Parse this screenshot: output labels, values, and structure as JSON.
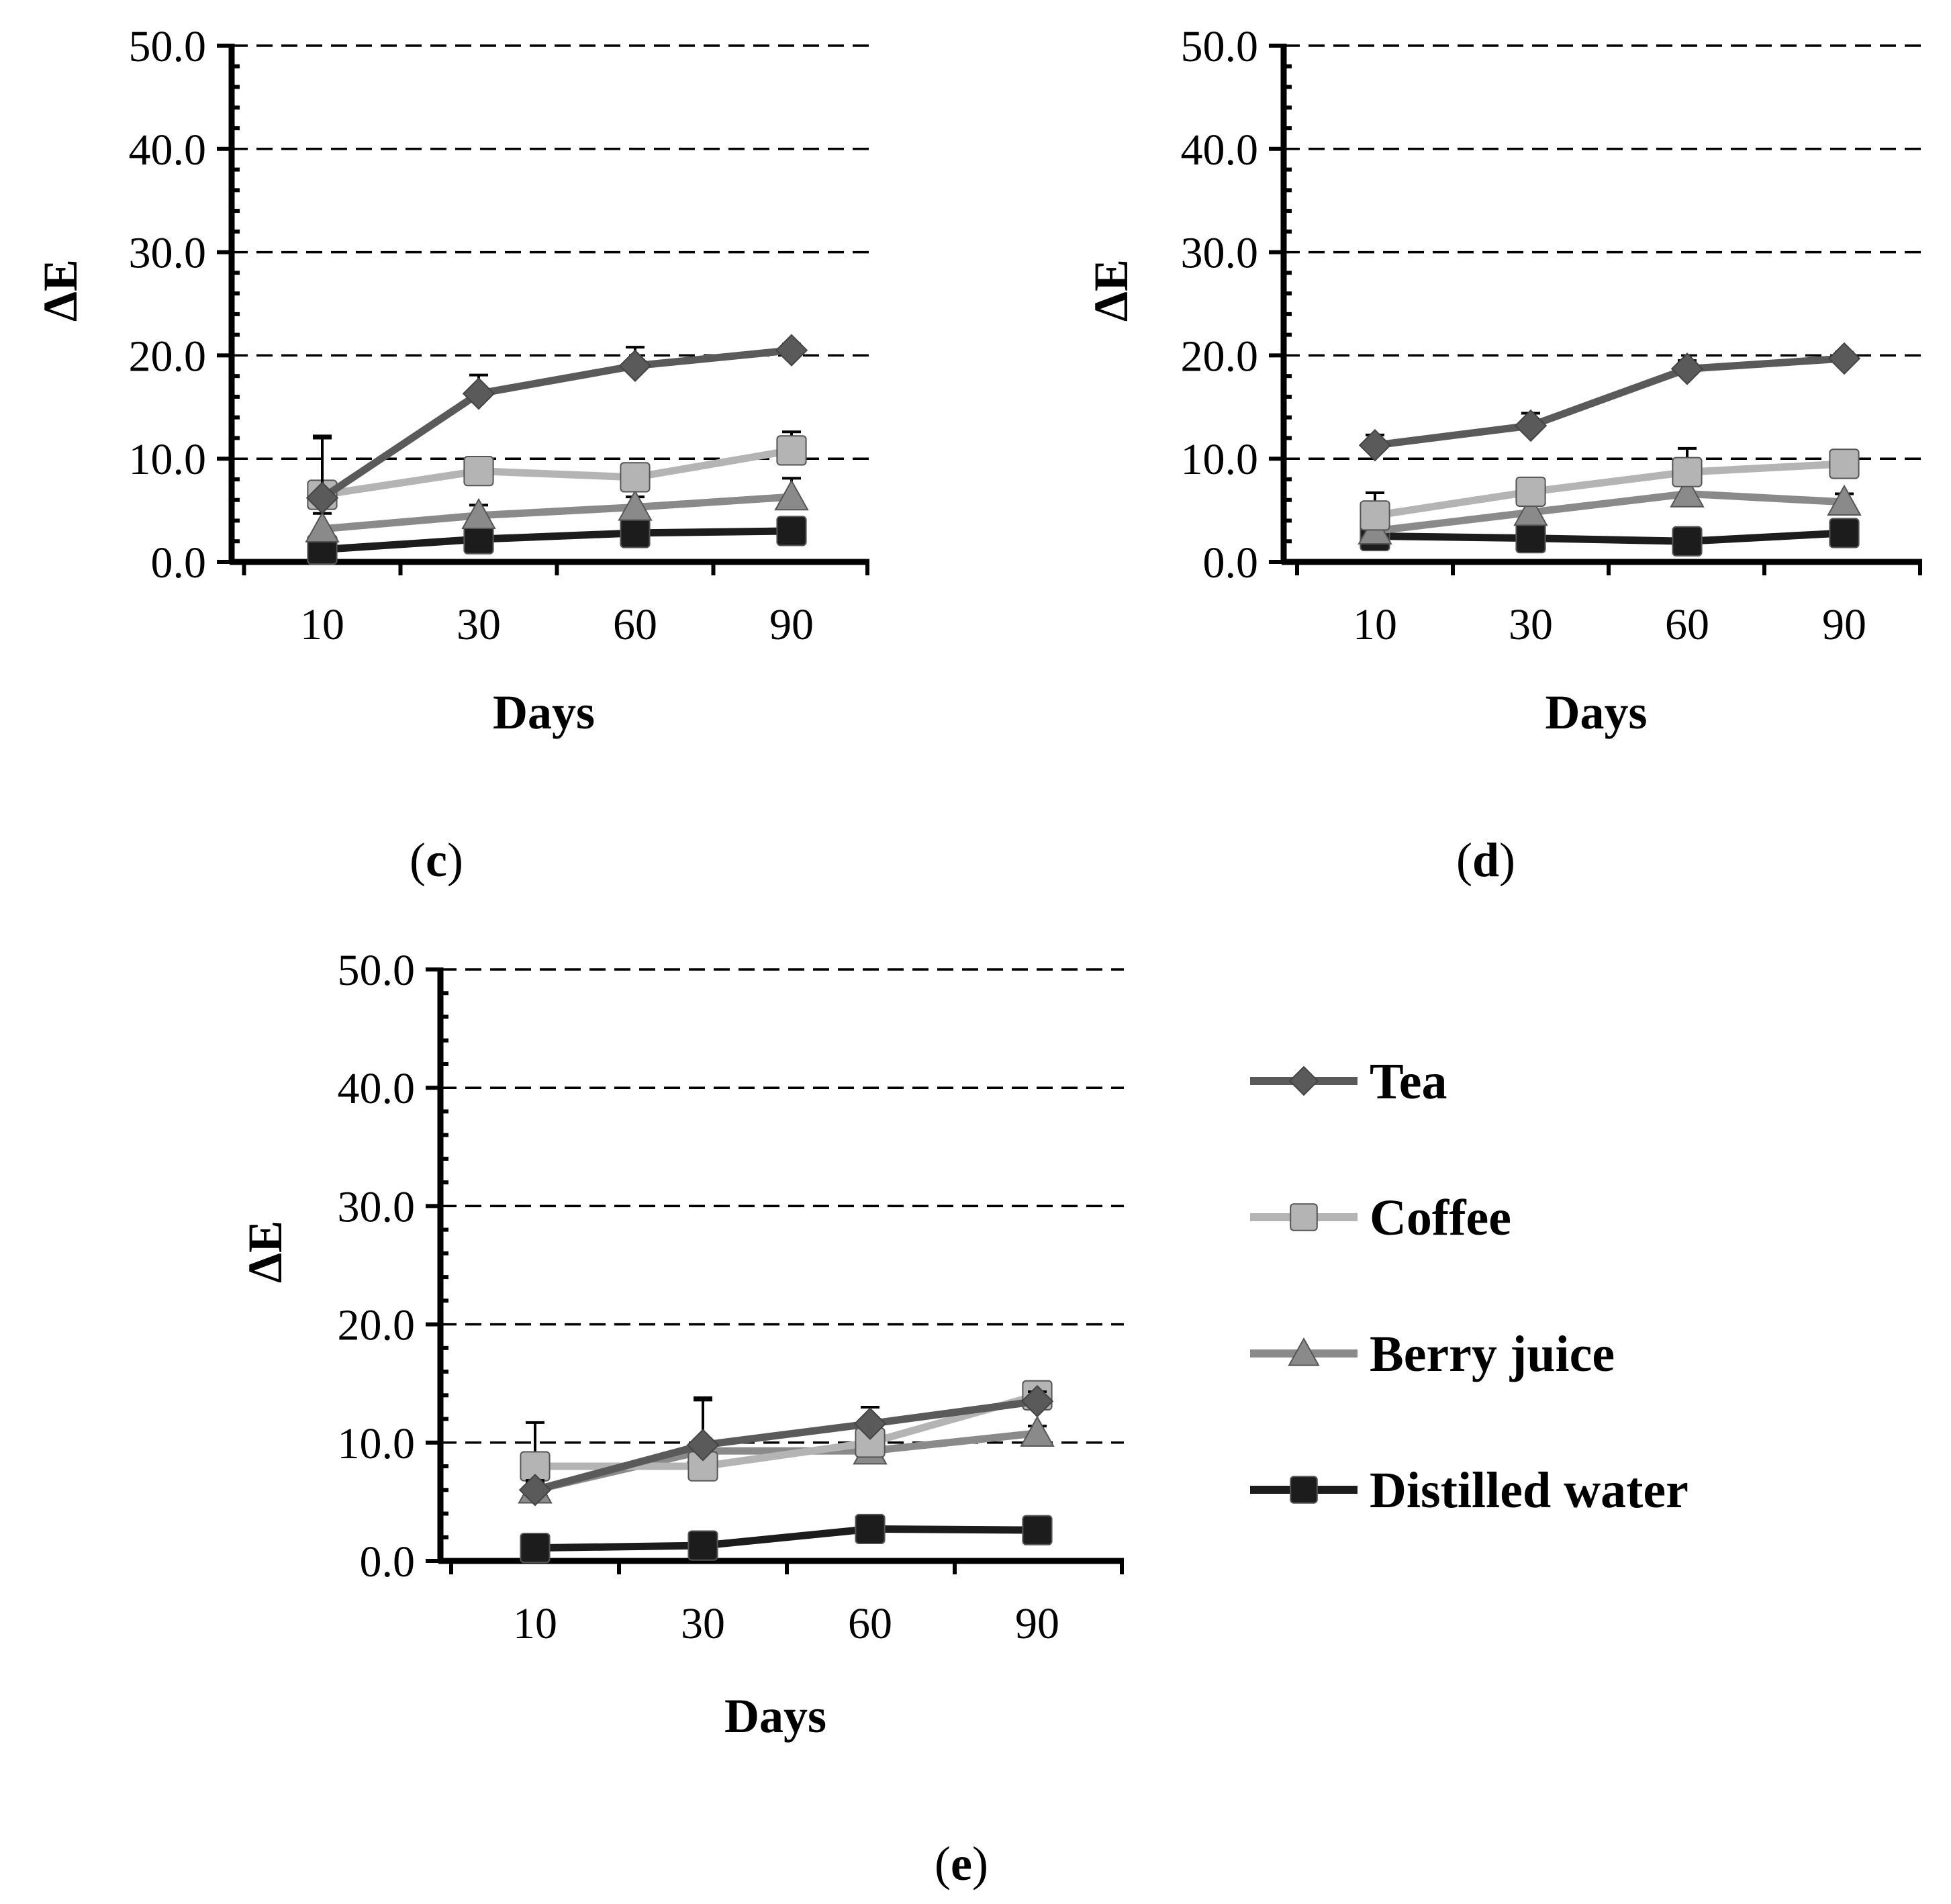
{
  "legend": [
    {
      "name": "Tea",
      "color": "#5a5a5a",
      "marker": "diamond-icon"
    },
    {
      "name": "Coffee",
      "color": "#b4b4b4",
      "marker": "square-icon"
    },
    {
      "name": "Berry juice",
      "color": "#8a8a8a",
      "marker": "triangle-icon"
    },
    {
      "name": "Distilled water",
      "color": "#1c1c1c",
      "marker": "square-icon"
    }
  ],
  "chart_data": [
    {
      "type": "line",
      "panel": "c",
      "caption_open": "(",
      "caption_letter": "c",
      "caption_close": ")",
      "xlabel": "Days",
      "ylabel": "ΔE",
      "categories": [
        "10",
        "30",
        "60",
        "90"
      ],
      "ylim": [
        0,
        50
      ],
      "yticks": [
        "0.0",
        "10.0",
        "20.0",
        "30.0",
        "40.0",
        "50.0"
      ],
      "series": [
        {
          "name": "Tea",
          "values": [
            6.2,
            16.3,
            19.0,
            20.5
          ],
          "errors": [
            6.0,
            1.8,
            1.8,
            0.6
          ]
        },
        {
          "name": "Coffee",
          "values": [
            6.5,
            8.8,
            8.2,
            10.8
          ],
          "errors": [
            5.5,
            1.0,
            1.2,
            1.8
          ]
        },
        {
          "name": "Berry juice",
          "values": [
            3.2,
            4.5,
            5.3,
            6.3
          ],
          "errors": [
            1.5,
            1.0,
            1.0,
            1.8
          ]
        },
        {
          "name": "Distilled water",
          "values": [
            1.2,
            2.2,
            2.8,
            3.0
          ],
          "errors": [
            0.5,
            0.5,
            0.5,
            0.5
          ]
        }
      ]
    },
    {
      "type": "line",
      "panel": "d",
      "caption_open": "(",
      "caption_letter": "d",
      "caption_close": ")",
      "xlabel": "Days",
      "ylabel": "ΔE",
      "categories": [
        "10",
        "30",
        "60",
        "90"
      ],
      "ylim": [
        0,
        50
      ],
      "yticks": [
        "0.0",
        "10.0",
        "20.0",
        "30.0",
        "40.0",
        "50.0"
      ],
      "series": [
        {
          "name": "Tea",
          "values": [
            11.3,
            13.2,
            18.7,
            19.7
          ],
          "errors": [
            1.0,
            1.2,
            0.8,
            0.6
          ]
        },
        {
          "name": "Coffee",
          "values": [
            4.5,
            6.8,
            8.7,
            9.5
          ],
          "errors": [
            2.2,
            1.0,
            2.3,
            0.8
          ]
        },
        {
          "name": "Berry juice",
          "values": [
            3.0,
            4.8,
            6.6,
            5.8
          ],
          "errors": [
            0.8,
            0.8,
            0.8,
            0.8
          ]
        },
        {
          "name": "Distilled water",
          "values": [
            2.5,
            2.3,
            2.0,
            2.8
          ],
          "errors": [
            0.4,
            0.4,
            0.4,
            0.4
          ]
        }
      ]
    },
    {
      "type": "line",
      "panel": "e",
      "caption_open": "(",
      "caption_letter": "e",
      "caption_close": ")",
      "xlabel": "Days",
      "ylabel": "ΔE",
      "categories": [
        "10",
        "30",
        "60",
        "90"
      ],
      "ylim": [
        0,
        50
      ],
      "yticks": [
        "0.0",
        "10.0",
        "20.0",
        "30.0",
        "40.0",
        "50.0"
      ],
      "series": [
        {
          "name": "Tea",
          "values": [
            6.0,
            9.8,
            11.6,
            13.5
          ],
          "errors": [
            0.8,
            3.8,
            1.4,
            0.8
          ]
        },
        {
          "name": "Coffee",
          "values": [
            8.0,
            8.0,
            10.0,
            14.0
          ],
          "errors": [
            3.7,
            5.8,
            1.0,
            0.6
          ]
        },
        {
          "name": "Berry juice",
          "values": [
            6.0,
            9.3,
            9.3,
            10.8
          ],
          "errors": [
            0.6,
            1.0,
            0.6,
            0.6
          ]
        },
        {
          "name": "Distilled water",
          "values": [
            1.1,
            1.3,
            2.7,
            2.6
          ],
          "errors": [
            0.3,
            0.3,
            0.3,
            0.3
          ]
        }
      ]
    }
  ]
}
